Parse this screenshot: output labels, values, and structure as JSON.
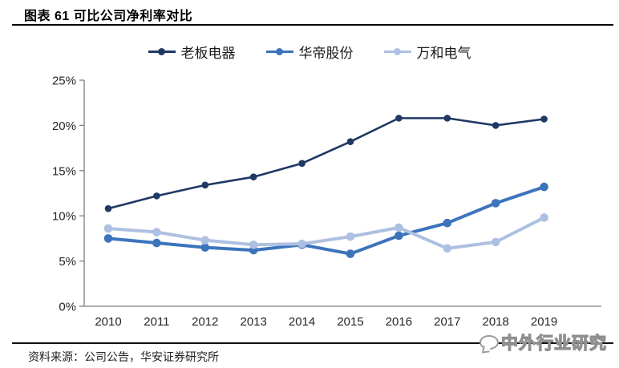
{
  "header": {
    "title": "图表  61 可比公司净利率对比"
  },
  "footer": {
    "source_label": "资料来源：公司公告，华安证券研究所",
    "watermark": "中外行业研究"
  },
  "chart_data": {
    "type": "line",
    "title": "可比公司净利率对比",
    "categories": [
      "2010",
      "2011",
      "2012",
      "2013",
      "2014",
      "2015",
      "2016",
      "2017",
      "2018",
      "2019"
    ],
    "series": [
      {
        "name": "老板电器",
        "color": "#1F3864",
        "values": [
          10.8,
          12.2,
          13.4,
          14.3,
          15.8,
          18.2,
          20.8,
          20.8,
          20.0,
          20.7
        ]
      },
      {
        "name": "华帝股份",
        "color": "#3C74BC",
        "values": [
          7.5,
          7.0,
          6.5,
          6.2,
          6.8,
          5.8,
          7.8,
          9.2,
          11.4,
          13.2
        ]
      },
      {
        "name": "万和电气",
        "color": "#AEC0E2",
        "values": [
          8.6,
          8.2,
          7.3,
          6.8,
          6.9,
          7.7,
          8.7,
          6.4,
          7.1,
          9.8
        ]
      }
    ],
    "xlabel": "",
    "ylabel": "",
    "y_ticks": [
      "0%",
      "5%",
      "10%",
      "15%",
      "20%",
      "25%"
    ],
    "ylim": [
      0,
      25
    ],
    "grid": false,
    "legend_position": "top",
    "axis_color": "#808080",
    "tick_label_color": "#262626"
  }
}
